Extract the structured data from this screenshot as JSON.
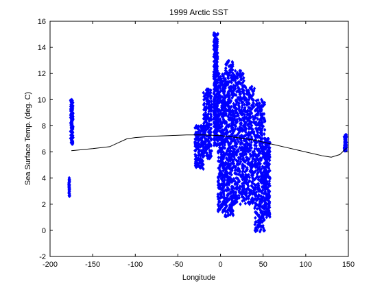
{
  "chart_data": {
    "type": "scatter",
    "title": "1999 Arctic SST",
    "xlabel": "Longitude",
    "ylabel": "Sea Surface Temp. (deg. C)",
    "xlim": [
      -200,
      150
    ],
    "ylim": [
      -2,
      16
    ],
    "xticks": [
      -200,
      -150,
      -100,
      -50,
      0,
      50,
      100,
      150
    ],
    "yticks": [
      -2,
      0,
      2,
      4,
      6,
      8,
      10,
      12,
      14,
      16
    ],
    "grid": false,
    "legend": "none",
    "colors": {
      "scatter": "#0000ff",
      "line": "#000000"
    },
    "series": [
      {
        "kind": "scatter",
        "marker": "diamond",
        "clusters": [
          {
            "x": [
              -178,
              -177
            ],
            "y": [
              2.6,
              4.0
            ]
          },
          {
            "x": [
              -176,
              -173
            ],
            "y": [
              6.6,
              10.0
            ]
          },
          {
            "x": [
              -30,
              -20
            ],
            "y": [
              4.7,
              8.0
            ]
          },
          {
            "x": [
              -20,
              -10
            ],
            "y": [
              5.5,
              10.8
            ]
          },
          {
            "x": [
              -8,
              -3
            ],
            "y": [
              6.5,
              15.1
            ]
          },
          {
            "x": [
              -3,
              5
            ],
            "y": [
              1.4,
              12.0
            ]
          },
          {
            "x": [
              5,
              15
            ],
            "y": [
              1.0,
              13.0
            ]
          },
          {
            "x": [
              15,
              28
            ],
            "y": [
              2.0,
              12.2
            ]
          },
          {
            "x": [
              28,
              40
            ],
            "y": [
              2.0,
              11.0
            ]
          },
          {
            "x": [
              40,
              52
            ],
            "y": [
              -0.1,
              10.0
            ]
          },
          {
            "x": [
              52,
              58
            ],
            "y": [
              1.0,
              7.0
            ]
          },
          {
            "x": [
              145,
              148
            ],
            "y": [
              6.1,
              7.3
            ]
          }
        ]
      },
      {
        "kind": "line",
        "x": [
          -175,
          -150,
          -130,
          -120,
          -110,
          -100,
          -80,
          -60,
          -40,
          -20,
          0,
          20,
          40,
          60,
          80,
          100,
          120,
          130,
          140,
          148
        ],
        "y": [
          6.1,
          6.25,
          6.4,
          6.7,
          7.0,
          7.1,
          7.2,
          7.25,
          7.3,
          7.3,
          7.25,
          7.1,
          6.9,
          6.6,
          6.3,
          6.0,
          5.7,
          5.6,
          5.8,
          6.3
        ]
      }
    ]
  }
}
